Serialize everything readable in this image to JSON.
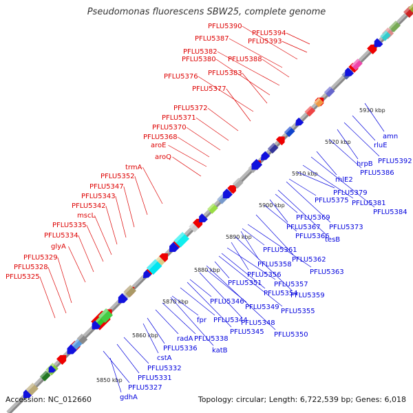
{
  "title": "Pseudomonas fluorescens SBW25, complete genome",
  "accession": "Accession: NC_012660",
  "summary": "Topology: circular; Length: 6,722,539 bp; Genes: 6,018",
  "colors": {
    "forward_label": "#dd0000",
    "reverse_label": "#0000dd",
    "backbone": "#b8b8b8",
    "gc_dots": "#2a8a2a"
  },
  "scale_ticks": [
    "5850 kbp",
    "5860 kbp",
    "5870 kbp",
    "5880 kbp",
    "5890 kbp",
    "5900 kbp",
    "5910 kbp",
    "5920 kbp",
    "5930 kbp"
  ],
  "forward_genes": [
    "PFLU5325",
    "PFLU5328",
    "PFLU5329",
    "glyA",
    "PFLU5334",
    "PFLU5335",
    "mscL",
    "PFLU5342",
    "PFLU5343",
    "PFLU5347",
    "PFLU5352",
    "trmA",
    "aroQ",
    "aroE",
    "PFLU5368",
    "PFLU5370",
    "PFLU5371",
    "PFLU5372",
    "PFLU5377",
    "PFLU5376",
    "PFLU5383",
    "PFLU5380",
    "PFLU5382",
    "PFLU5388",
    "PFLU5387",
    "PFLU5390",
    "PFLU5393",
    "PFLU5394"
  ],
  "reverse_genes": [
    "gdhA",
    "PFLU5327",
    "PFLU5331",
    "PFLU5332",
    "cstA",
    "PFLU5336",
    "radA",
    "PFLU5338",
    "katB",
    "fpr",
    "PFLU5344",
    "PFLU5345",
    "PFLU5346",
    "PFLU5348",
    "PFLU5350",
    "PFLU5349",
    "PFLU5351",
    "PFLU5355",
    "PFLU5354",
    "PFLU5357",
    "PFLU5356",
    "PFLU5359",
    "PFLU5358",
    "PFLU5363",
    "PFLU5361",
    "PFLU5362",
    "PFLU5366",
    "PFLU5367",
    "PFLU5369",
    "tesB",
    "PFLU5373",
    "PFLU5375",
    "PFLU5379",
    "PFLU5381",
    "PFLU5384",
    "rhlE2",
    "PFLU5386",
    "hrpB",
    "PFLU5392",
    "rluE",
    "amn"
  ]
}
